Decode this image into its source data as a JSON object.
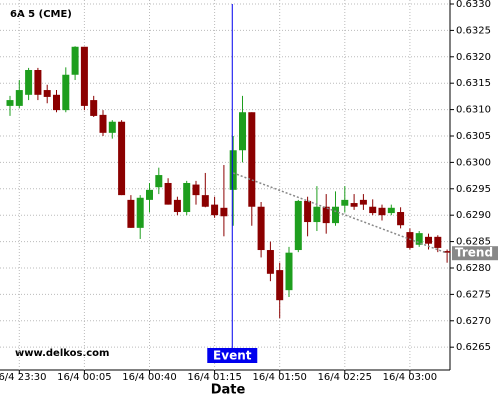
{
  "chart_data": {
    "type": "candlestick",
    "title": "6A 5 (CME)",
    "watermark": "www.delkos.com",
    "x_label": "Date",
    "categories": [
      null,
      "16/4 23:30",
      null,
      null,
      null,
      null,
      null,
      null,
      "16/4 00:05",
      null,
      null,
      null,
      null,
      null,
      null,
      "16/4 00:40",
      null,
      null,
      null,
      null,
      null,
      null,
      "16/4 01:15",
      null,
      null,
      null,
      null,
      null,
      null,
      "16/4 01:50",
      null,
      null,
      null,
      null,
      null,
      null,
      "16/4 02:25",
      null,
      null,
      null,
      null,
      null,
      null,
      "16/4 03:00",
      null,
      null,
      null,
      null
    ],
    "open": [
      0.63107,
      0.63107,
      0.63128,
      0.63175,
      0.63137,
      0.63128,
      0.63099,
      0.63166,
      0.63219,
      0.63118,
      0.6309,
      0.63056,
      0.63077,
      0.62929,
      0.62876,
      0.62929,
      0.62953,
      0.62961,
      0.62929,
      0.62906,
      0.62958,
      0.62938,
      0.6292,
      0.62914,
      0.62948,
      0.63023,
      0.63095,
      0.62916,
      0.62834,
      0.62796,
      0.62758,
      0.62834,
      0.62927,
      0.62887,
      0.62916,
      0.62885,
      0.62918,
      0.62923,
      0.62929,
      0.62916,
      0.62914,
      0.62904,
      0.62906,
      0.62868,
      0.62844,
      0.62859,
      0.62859,
      0.62832
    ],
    "high": [
      0.63126,
      0.63156,
      0.63179,
      0.63179,
      0.63147,
      0.63137,
      0.6318,
      0.6322,
      0.63219,
      0.63126,
      0.63099,
      0.6308,
      0.6308,
      0.62938,
      0.62938,
      0.62961,
      0.6299,
      0.6297,
      0.62935,
      0.62965,
      0.62965,
      0.6298,
      0.62935,
      0.62995,
      0.6305,
      0.63126,
      0.63095,
      0.62925,
      0.6285,
      0.6281,
      0.6284,
      0.62929,
      0.62935,
      0.62955,
      0.6294,
      0.62945,
      0.62955,
      0.6294,
      0.6294,
      0.6293,
      0.6292,
      0.6292,
      0.62915,
      0.62875,
      0.6287,
      0.62865,
      0.62862,
      0.62835
    ],
    "low": [
      0.63088,
      0.63103,
      0.63118,
      0.63118,
      0.63112,
      0.63095,
      0.63095,
      0.63156,
      0.63099,
      0.63086,
      0.6305,
      0.63045,
      0.62938,
      0.62876,
      0.62855,
      0.62905,
      0.6294,
      0.6292,
      0.629,
      0.629,
      0.6292,
      0.62915,
      0.62895,
      0.6286,
      0.6288,
      0.63,
      0.6288,
      0.6282,
      0.62775,
      0.62705,
      0.62745,
      0.6283,
      0.6286,
      0.6287,
      0.62865,
      0.6288,
      0.62905,
      0.6291,
      0.6291,
      0.629,
      0.6289,
      0.629,
      0.62875,
      0.62835,
      0.6284,
      0.62835,
      0.6283,
      0.6281
    ],
    "close": [
      0.63118,
      0.63137,
      0.63175,
      0.63128,
      0.63124,
      0.63099,
      0.63166,
      0.63219,
      0.63107,
      0.63088,
      0.63056,
      0.63077,
      0.62938,
      0.62876,
      0.62933,
      0.62948,
      0.62976,
      0.6292,
      0.62906,
      0.62961,
      0.62938,
      0.62916,
      0.629,
      0.62898,
      0.63023,
      0.63095,
      0.62916,
      0.62834,
      0.62789,
      0.62739,
      0.62829,
      0.62927,
      0.62887,
      0.62916,
      0.62885,
      0.62916,
      0.62929,
      0.62916,
      0.6292,
      0.62904,
      0.629,
      0.62914,
      0.62881,
      0.62838,
      0.62866,
      0.62846,
      0.62838,
      0.62829
    ],
    "up_color": "#1e9e1e",
    "down_color": "#8b0000",
    "ylim": [
      0.6261,
      0.633
    ],
    "yticks": [
      0.6265,
      {
        "value": 0.627,
        "label": "0.6270"
      },
      0.6275,
      {
        "value": 0.628,
        "label": "0.6280"
      },
      0.6285,
      {
        "value": 0.629,
        "label": "0.6290"
      },
      0.6295,
      {
        "value": 0.63,
        "label": "0.6300"
      },
      0.6305,
      {
        "value": 0.631,
        "label": "0.6310"
      },
      0.6315,
      {
        "value": 0.632,
        "label": "0.6320"
      },
      0.6325,
      {
        "value": 0.633,
        "label": "0.6330"
      }
    ],
    "grid": true,
    "event": {
      "label": "Event",
      "x": 23.9,
      "color": "#0000ee"
    },
    "trend": {
      "label": "Trend",
      "x": [
        24,
        47
      ],
      "values": [
        0.6298,
        0.62828
      ],
      "color": "#888888"
    }
  }
}
